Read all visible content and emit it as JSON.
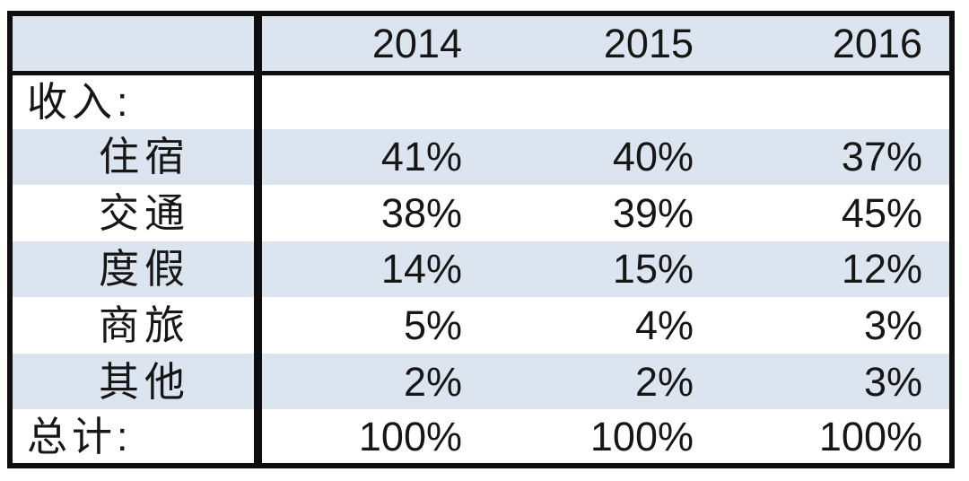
{
  "chart_data": {
    "type": "table",
    "corner_cell": "",
    "columns": [
      "2014",
      "2015",
      "2016"
    ],
    "section_header": "收入:",
    "rows": [
      {
        "label": "住宿",
        "values": [
          "41%",
          "40%",
          "37%"
        ]
      },
      {
        "label": "交通",
        "values": [
          "38%",
          "39%",
          "45%"
        ]
      },
      {
        "label": "度假",
        "values": [
          "14%",
          "15%",
          "12%"
        ]
      },
      {
        "label": "商旅",
        "values": [
          "5%",
          "4%",
          "3%"
        ]
      },
      {
        "label": "其他",
        "values": [
          "2%",
          "2%",
          "3%"
        ]
      }
    ],
    "total_row": {
      "label": "总计:",
      "values": [
        "100%",
        "100%",
        "100%"
      ]
    },
    "layout_hints": {
      "band_color": "#dce4ef",
      "row_alt_color": "#ffffff",
      "border_color": "#0e0e0e",
      "text_color": "#161616",
      "grid": "outer-border, heavy vertical rule after label column, rule under header",
      "value_alignment": "right"
    }
  }
}
